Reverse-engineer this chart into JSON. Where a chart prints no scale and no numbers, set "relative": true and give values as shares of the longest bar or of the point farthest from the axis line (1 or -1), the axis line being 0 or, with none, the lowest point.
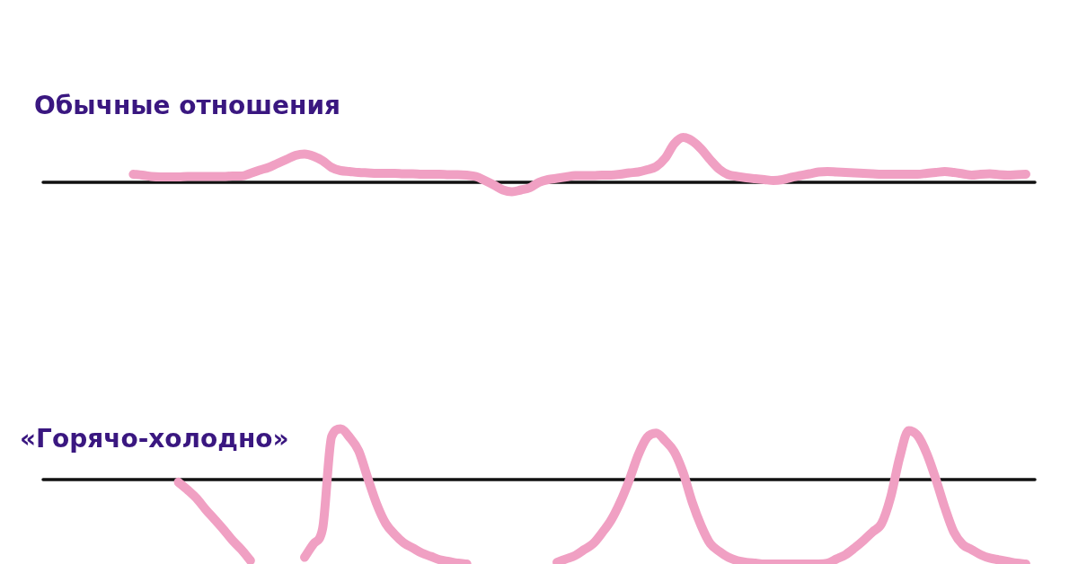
{
  "chart_data": [
    {
      "type": "line",
      "title": "Обычные отношения",
      "relative": true,
      "marker": "none",
      "color": "#f0a0c3",
      "categories": [
        null,
        null,
        null,
        null,
        null,
        null,
        null,
        null,
        null,
        null,
        null,
        null,
        null,
        null,
        null,
        null,
        null,
        null,
        null,
        null,
        null,
        null,
        null,
        null,
        null,
        null,
        null,
        null,
        null,
        null,
        null,
        null,
        null,
        null,
        null,
        null,
        null,
        null,
        null,
        null,
        null,
        null,
        null,
        null,
        null,
        null,
        null,
        null,
        null,
        null,
        null,
        null,
        null,
        null,
        null,
        null,
        null,
        null,
        null,
        null,
        null,
        null,
        null,
        null,
        null,
        null,
        null,
        null,
        null,
        null,
        null,
        null,
        null,
        null,
        null,
        null,
        null,
        null,
        null,
        null,
        null,
        null,
        null,
        null,
        null,
        null,
        null,
        null,
        null,
        null,
        null,
        null,
        null,
        null,
        null,
        null,
        null,
        null,
        null,
        null,
        null,
        null,
        null,
        null,
        null,
        null,
        null,
        null,
        null,
        null,
        null
      ],
      "values": [
        null,
        null,
        null,
        null,
        null,
        null,
        null,
        null,
        null,
        null,
        0.18,
        0.16,
        0.13,
        0.12,
        0.12,
        0.12,
        0.13,
        0.13,
        0.13,
        0.13,
        0.13,
        0.14,
        0.14,
        0.2,
        0.27,
        0.33,
        0.42,
        0.51,
        0.6,
        0.63,
        0.58,
        0.48,
        0.33,
        0.26,
        0.24,
        0.22,
        0.21,
        0.2,
        0.2,
        0.2,
        0.19,
        0.19,
        0.18,
        0.18,
        0.18,
        0.17,
        0.17,
        0.16,
        0.13,
        0.04,
        -0.06,
        -0.17,
        -0.21,
        -0.17,
        -0.12,
        0,
        0.06,
        0.09,
        0.12,
        0.15,
        0.15,
        0.15,
        0.16,
        0.16,
        0.18,
        0.21,
        0.23,
        0.28,
        0.35,
        0.54,
        0.86,
        1,
        0.92,
        0.74,
        0.5,
        0.29,
        0.17,
        0.13,
        0.1,
        0.08,
        0.06,
        0.04,
        0.06,
        0.11,
        0.15,
        0.19,
        0.23,
        0.24,
        0.23,
        0.22,
        0.21,
        0.2,
        0.19,
        0.18,
        0.18,
        0.18,
        0.18,
        0.18,
        0.2,
        0.22,
        0.24,
        0.22,
        0.19,
        0.16,
        0.18,
        0.19,
        0.17,
        0.16,
        0.17,
        0.18,
        null
      ]
    },
    {
      "type": "line",
      "title": "«Горячо-холодно»",
      "relative": true,
      "marker": "none",
      "color": "#f0a0c3",
      "categories": [
        null,
        null,
        null,
        null,
        null,
        null,
        null,
        null,
        null,
        null,
        null,
        null,
        null,
        null,
        null,
        null,
        null,
        null,
        null,
        null,
        null,
        null,
        null,
        null,
        null,
        null,
        null,
        null,
        null,
        null,
        null,
        null,
        null,
        null,
        null,
        null,
        null,
        null,
        null,
        null,
        null,
        null,
        null,
        null,
        null,
        null,
        null,
        null,
        null,
        null,
        null,
        null,
        null,
        null,
        null,
        null,
        null,
        null,
        null,
        null,
        null,
        null,
        null,
        null,
        null,
        null,
        null,
        null,
        null,
        null,
        null,
        null,
        null,
        null,
        null,
        null,
        null,
        null,
        null,
        null,
        null,
        null,
        null,
        null,
        null,
        null,
        null,
        null,
        null,
        null,
        null,
        null,
        null,
        null,
        null,
        null,
        null,
        null,
        null,
        null,
        null,
        null,
        null,
        null,
        null,
        null,
        null,
        null,
        null,
        null,
        null
      ],
      "values": [
        null,
        null,
        null,
        null,
        null,
        null,
        null,
        null,
        null,
        null,
        null,
        null,
        null,
        null,
        null,
        -0.03,
        -0.12,
        -0.22,
        -0.35,
        -0.47,
        -0.59,
        -0.72,
        -0.83,
        -0.96,
        null,
        null,
        null,
        null,
        null,
        -0.92,
        -0.76,
        -0.58,
        0.51,
        0.6,
        0.5,
        0.34,
        0.02,
        -0.29,
        -0.52,
        -0.65,
        -0.75,
        -0.81,
        -0.87,
        -0.91,
        -0.95,
        -0.97,
        -0.99,
        -1,
        null,
        null,
        null,
        null,
        null,
        null,
        null,
        null,
        null,
        -0.98,
        -0.94,
        -0.9,
        -0.83,
        -0.76,
        -0.63,
        -0.48,
        -0.27,
        -0.01,
        0.29,
        0.5,
        0.55,
        0.46,
        0.33,
        0.08,
        -0.27,
        -0.55,
        -0.76,
        -0.85,
        -0.92,
        -0.96,
        -0.98,
        -0.99,
        -1,
        -1,
        -1,
        -1,
        -1,
        -1,
        -1,
        -0.99,
        -0.94,
        -0.89,
        -0.81,
        -0.72,
        -0.62,
        -0.52,
        -0.21,
        0.26,
        0.58,
        0.52,
        0.31,
        0.01,
        -0.33,
        -0.62,
        -0.77,
        -0.83,
        -0.89,
        -0.93,
        -0.95,
        -0.97,
        -0.99,
        -1,
        null
      ]
    }
  ]
}
